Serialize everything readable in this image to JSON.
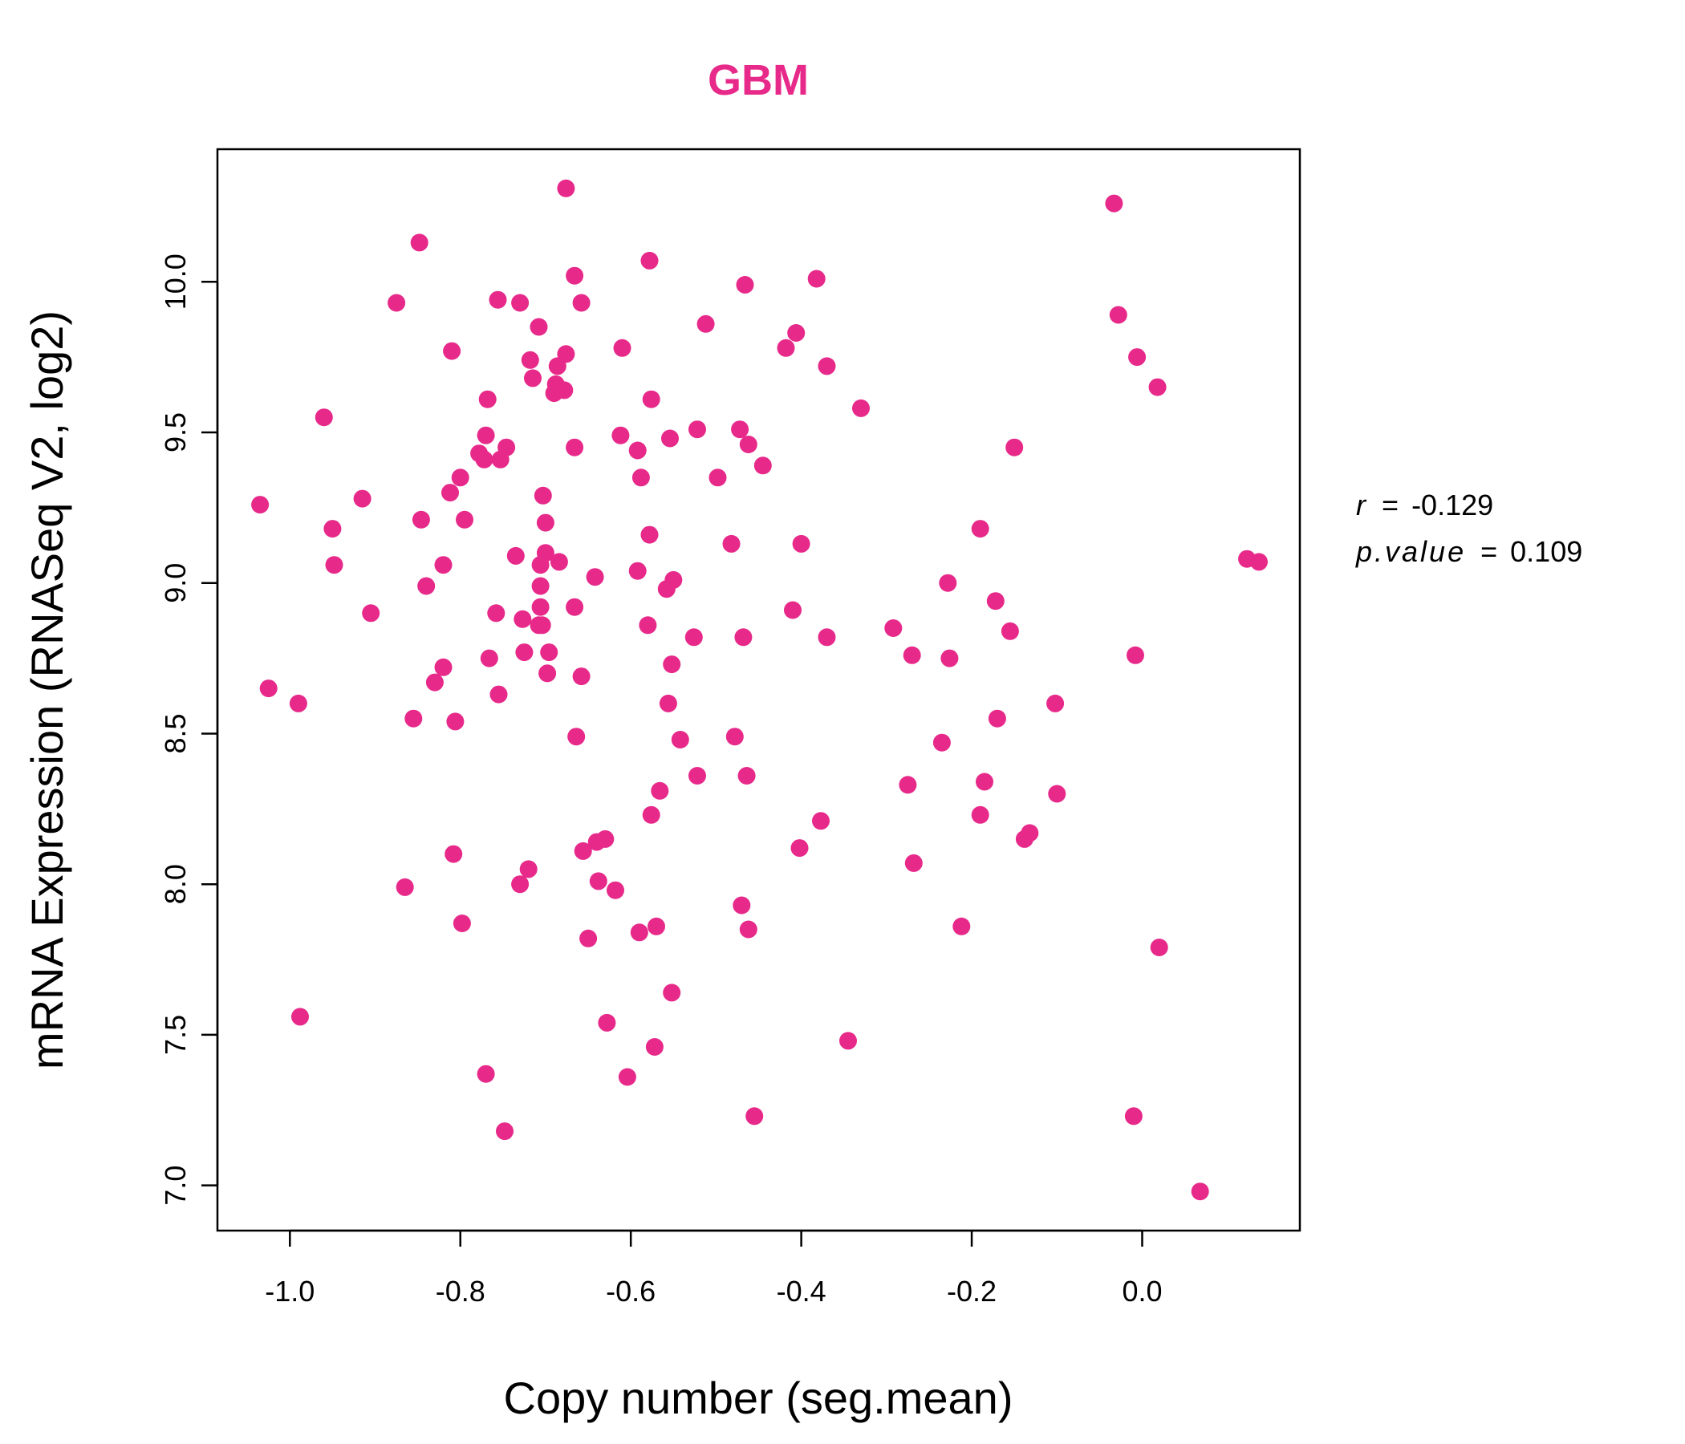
{
  "chart_data": {
    "type": "scatter",
    "title": "GBM",
    "xlabel": "Copy number (seg.mean)",
    "ylabel": "mRNA Expression (RNASeq V2, log2)",
    "xlim": [
      -1.085,
      0.185
    ],
    "ylim": [
      6.85,
      10.44
    ],
    "xticks": [
      -1.0,
      -0.8,
      -0.6,
      -0.4,
      -0.2,
      0.0
    ],
    "xtick_labels": [
      "-1.0",
      "-0.8",
      "-0.6",
      "-0.4",
      "-0.2",
      "0.0"
    ],
    "yticks": [
      7.0,
      7.5,
      8.0,
      8.5,
      9.0,
      9.5,
      10.0
    ],
    "ytick_labels": [
      "7.0",
      "7.5",
      "8.0",
      "8.5",
      "9.0",
      "9.5",
      "10.0"
    ],
    "grid": false,
    "point_color": "#E7298A",
    "annotation": {
      "r_label": "r",
      "r_value": "-0.129",
      "p_label": "p.value",
      "p_value": "0.109",
      "equals": "="
    },
    "points": [
      [
        -1.035,
        9.26
      ],
      [
        -1.025,
        8.65
      ],
      [
        -0.99,
        8.6
      ],
      [
        -0.988,
        7.56
      ],
      [
        -0.96,
        9.55
      ],
      [
        -0.95,
        9.18
      ],
      [
        -0.948,
        9.06
      ],
      [
        -0.915,
        9.28
      ],
      [
        -0.905,
        8.9
      ],
      [
        -0.875,
        9.93
      ],
      [
        -0.865,
        7.99
      ],
      [
        -0.855,
        8.55
      ],
      [
        -0.848,
        10.13
      ],
      [
        -0.846,
        9.21
      ],
      [
        -0.84,
        8.99
      ],
      [
        -0.83,
        8.67
      ],
      [
        -0.82,
        8.72
      ],
      [
        -0.82,
        9.06
      ],
      [
        -0.812,
        9.3
      ],
      [
        -0.81,
        9.77
      ],
      [
        -0.808,
        8.1
      ],
      [
        -0.806,
        8.54
      ],
      [
        -0.8,
        9.35
      ],
      [
        -0.798,
        7.87
      ],
      [
        -0.795,
        9.21
      ],
      [
        -0.778,
        9.43
      ],
      [
        -0.772,
        9.41
      ],
      [
        -0.77,
        9.49
      ],
      [
        -0.768,
        9.61
      ],
      [
        -0.766,
        8.75
      ],
      [
        -0.77,
        7.37
      ],
      [
        -0.758,
        8.9
      ],
      [
        -0.756,
        9.94
      ],
      [
        -0.755,
        8.63
      ],
      [
        -0.753,
        9.41
      ],
      [
        -0.748,
        7.18
      ],
      [
        -0.746,
        9.45
      ],
      [
        -0.735,
        9.09
      ],
      [
        -0.73,
        9.93
      ],
      [
        -0.727,
        8.88
      ],
      [
        -0.725,
        8.77
      ],
      [
        -0.73,
        8.0
      ],
      [
        -0.72,
        8.05
      ],
      [
        -0.718,
        9.74
      ],
      [
        -0.715,
        9.68
      ],
      [
        -0.708,
        9.85
      ],
      [
        -0.708,
        8.86
      ],
      [
        -0.706,
        8.92
      ],
      [
        -0.706,
        8.99
      ],
      [
        -0.706,
        9.06
      ],
      [
        -0.704,
        8.86
      ],
      [
        -0.703,
        9.29
      ],
      [
        -0.7,
        9.2
      ],
      [
        -0.7,
        9.1
      ],
      [
        -0.698,
        8.7
      ],
      [
        -0.696,
        8.77
      ],
      [
        -0.69,
        9.63
      ],
      [
        -0.688,
        9.66
      ],
      [
        -0.686,
        9.72
      ],
      [
        -0.684,
        9.07
      ],
      [
        -0.678,
        9.64
      ],
      [
        -0.676,
        9.76
      ],
      [
        -0.676,
        10.31
      ],
      [
        -0.666,
        10.02
      ],
      [
        -0.666,
        9.45
      ],
      [
        -0.666,
        8.92
      ],
      [
        -0.664,
        8.49
      ],
      [
        -0.658,
        9.93
      ],
      [
        -0.658,
        8.69
      ],
      [
        -0.656,
        8.11
      ],
      [
        -0.65,
        7.82
      ],
      [
        -0.642,
        9.02
      ],
      [
        -0.64,
        8.14
      ],
      [
        -0.638,
        8.01
      ],
      [
        -0.63,
        8.15
      ],
      [
        -0.628,
        7.54
      ],
      [
        -0.618,
        7.98
      ],
      [
        -0.61,
        9.78
      ],
      [
        -0.612,
        9.49
      ],
      [
        -0.604,
        7.36
      ],
      [
        -0.592,
        9.44
      ],
      [
        -0.592,
        9.04
      ],
      [
        -0.59,
        7.84
      ],
      [
        -0.588,
        9.35
      ],
      [
        -0.58,
        8.86
      ],
      [
        -0.578,
        9.16
      ],
      [
        -0.578,
        10.07
      ],
      [
        -0.576,
        9.61
      ],
      [
        -0.576,
        8.23
      ],
      [
        -0.572,
        7.46
      ],
      [
        -0.57,
        7.86
      ],
      [
        -0.566,
        8.31
      ],
      [
        -0.558,
        8.98
      ],
      [
        -0.556,
        8.6
      ],
      [
        -0.554,
        9.48
      ],
      [
        -0.552,
        8.73
      ],
      [
        -0.552,
        7.64
      ],
      [
        -0.55,
        9.01
      ],
      [
        -0.542,
        8.48
      ],
      [
        -0.526,
        8.82
      ],
      [
        -0.522,
        9.51
      ],
      [
        -0.522,
        8.36
      ],
      [
        -0.512,
        9.86
      ],
      [
        -0.498,
        9.35
      ],
      [
        -0.482,
        9.13
      ],
      [
        -0.478,
        8.49
      ],
      [
        -0.472,
        9.51
      ],
      [
        -0.47,
        7.93
      ],
      [
        -0.468,
        8.82
      ],
      [
        -0.466,
        9.99
      ],
      [
        -0.464,
        8.36
      ],
      [
        -0.462,
        9.46
      ],
      [
        -0.462,
        7.85
      ],
      [
        -0.455,
        7.23
      ],
      [
        -0.445,
        9.39
      ],
      [
        -0.418,
        9.78
      ],
      [
        -0.41,
        8.91
      ],
      [
        -0.406,
        9.83
      ],
      [
        -0.402,
        8.12
      ],
      [
        -0.4,
        9.13
      ],
      [
        -0.382,
        10.01
      ],
      [
        -0.377,
        8.21
      ],
      [
        -0.37,
        9.72
      ],
      [
        -0.37,
        8.82
      ],
      [
        -0.345,
        7.48
      ],
      [
        -0.33,
        9.58
      ],
      [
        -0.292,
        8.85
      ],
      [
        -0.275,
        8.33
      ],
      [
        -0.27,
        8.76
      ],
      [
        -0.268,
        8.07
      ],
      [
        -0.235,
        8.47
      ],
      [
        -0.228,
        9.0
      ],
      [
        -0.226,
        8.75
      ],
      [
        -0.212,
        7.86
      ],
      [
        -0.19,
        9.18
      ],
      [
        -0.19,
        8.23
      ],
      [
        -0.185,
        8.34
      ],
      [
        -0.172,
        8.94
      ],
      [
        -0.17,
        8.55
      ],
      [
        -0.155,
        8.84
      ],
      [
        -0.15,
        9.45
      ],
      [
        -0.138,
        8.15
      ],
      [
        -0.132,
        8.17
      ],
      [
        -0.102,
        8.6
      ],
      [
        -0.1,
        8.3
      ],
      [
        -0.033,
        10.26
      ],
      [
        -0.028,
        9.89
      ],
      [
        -0.01,
        7.23
      ],
      [
        -0.008,
        8.76
      ],
      [
        -0.006,
        9.75
      ],
      [
        0.018,
        9.65
      ],
      [
        0.02,
        7.79
      ],
      [
        0.068,
        6.98
      ],
      [
        0.123,
        9.08
      ],
      [
        0.137,
        9.07
      ]
    ]
  }
}
